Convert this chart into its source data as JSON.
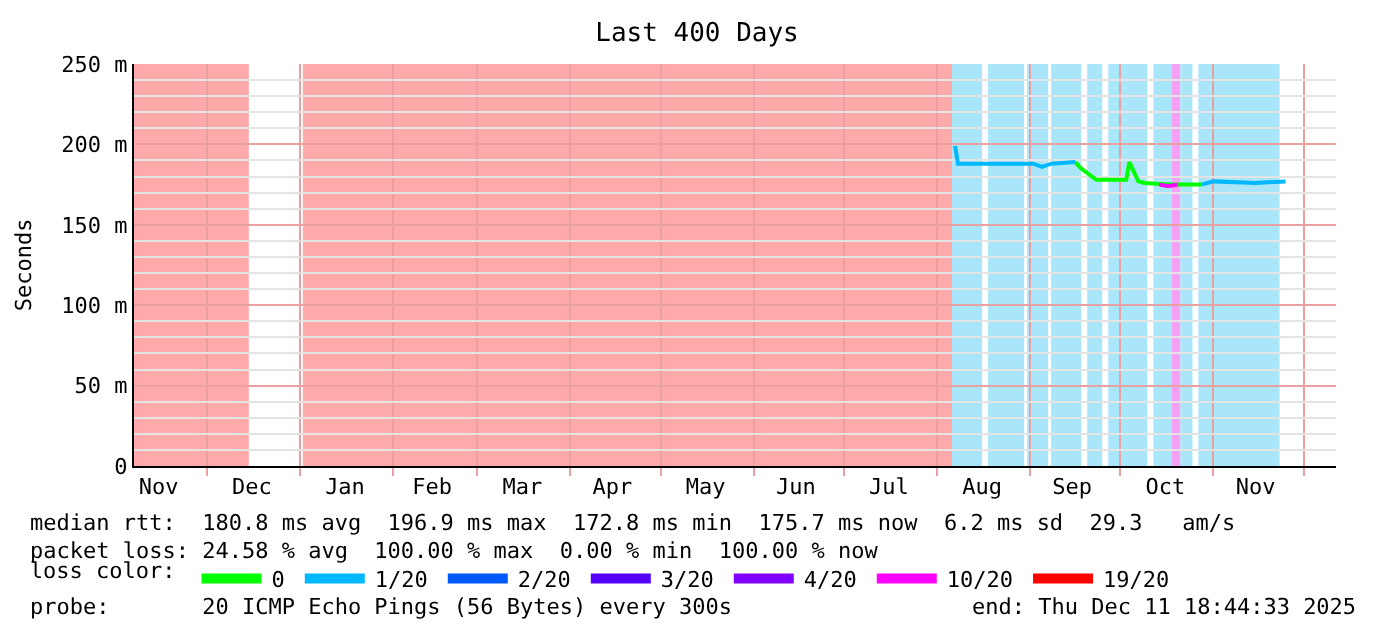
{
  "chart_data": {
    "type": "line",
    "title": "Last 400 Days",
    "ylabel": "Seconds",
    "xlim": [
      "2024-11-06T18:44",
      "2025-12-11T18:44"
    ],
    "xticks": [
      {
        "value": "2024-11-15",
        "label": "Nov"
      },
      {
        "value": "2024-12-16",
        "label": "Dec"
      },
      {
        "value": "2025-01-16",
        "label": "Jan"
      },
      {
        "value": "2025-02-14",
        "label": "Feb"
      },
      {
        "value": "2025-03-16",
        "label": "Mar"
      },
      {
        "value": "2025-04-15",
        "label": "Apr"
      },
      {
        "value": "2025-05-16",
        "label": "May"
      },
      {
        "value": "2025-06-15",
        "label": "Jun"
      },
      {
        "value": "2025-07-16",
        "label": "Jul"
      },
      {
        "value": "2025-08-16",
        "label": "Aug"
      },
      {
        "value": "2025-09-15",
        "label": "Sep"
      },
      {
        "value": "2025-10-16",
        "label": "Oct"
      },
      {
        "value": "2025-11-15",
        "label": "Nov"
      },
      {
        "value": "2024-12-01",
        "label": null
      },
      {
        "value": "2025-01-01",
        "label": null
      },
      {
        "value": "2025-02-01",
        "label": null
      },
      {
        "value": "2025-03-01",
        "label": null
      },
      {
        "value": "2025-04-01",
        "label": null
      },
      {
        "value": "2025-05-01",
        "label": null
      },
      {
        "value": "2025-06-01",
        "label": null
      },
      {
        "value": "2025-07-01",
        "label": null
      },
      {
        "value": "2025-08-01",
        "label": null
      },
      {
        "value": "2025-09-01",
        "label": null
      },
      {
        "value": "2025-10-01",
        "label": null
      },
      {
        "value": "2025-11-01",
        "label": null
      },
      {
        "value": "2025-12-01",
        "label": null
      }
    ],
    "ylim": [
      0,
      250
    ],
    "yticks": [
      0,
      {
        "value": 50,
        "label": "50 m"
      },
      {
        "value": 100,
        "label": "100 m"
      },
      {
        "value": 150,
        "label": "150 m"
      },
      {
        "value": 200,
        "label": "200 m"
      },
      {
        "value": 250,
        "label": "250 m"
      },
      {
        "value": 10,
        "label": null
      },
      {
        "value": 20,
        "label": null
      },
      {
        "value": 30,
        "label": null
      },
      {
        "value": 40,
        "label": null
      },
      {
        "value": 60,
        "label": null
      },
      {
        "value": 70,
        "label": null
      },
      {
        "value": 80,
        "label": null
      },
      {
        "value": 90,
        "label": null
      },
      {
        "value": 110,
        "label": null
      },
      {
        "value": 120,
        "label": null
      },
      {
        "value": 130,
        "label": null
      },
      {
        "value": 140,
        "label": null
      },
      {
        "value": 160,
        "label": null
      },
      {
        "value": 170,
        "label": null
      },
      {
        "value": 180,
        "label": null
      },
      {
        "value": 190,
        "label": null
      },
      {
        "value": 210,
        "label": null
      },
      {
        "value": 220,
        "label": null
      },
      {
        "value": 230,
        "label": null
      },
      {
        "value": 240,
        "label": null
      }
    ],
    "grid": true,
    "legend": "bottom",
    "legend_title": "loss color:",
    "series": [
      {
        "name": "0",
        "color": "#00ff00",
        "x": [
          "2025-09-16",
          "2025-09-18",
          "2025-09-23",
          "2025-10-03",
          "2025-10-04",
          "2025-10-07",
          "2025-10-09",
          "2025-10-17",
          "2025-10-28"
        ],
        "values": [
          189,
          185,
          178,
          178,
          189,
          177,
          176,
          175,
          175
        ]
      },
      {
        "name": "1/20",
        "color": "#00b8ff",
        "x": [
          "2025-08-07",
          "2025-08-08",
          "2025-08-18",
          "2025-09-02",
          "2025-09-05",
          "2025-09-08",
          "2025-09-16",
          null,
          "2025-10-28",
          "2025-11-01",
          "2025-11-15",
          "2025-11-25"
        ],
        "values": [
          199,
          188,
          188,
          188,
          186,
          188,
          189,
          null,
          175,
          177,
          176,
          177
        ]
      },
      {
        "name": "2/20",
        "color": "#0059ff"
      },
      {
        "name": "3/20",
        "color": "#5500ff"
      },
      {
        "name": "4/20",
        "color": "#7e00ff"
      },
      {
        "name": "10/20",
        "color": "#ff00ff",
        "x": [
          "2025-10-14",
          "2025-10-17",
          "2025-10-20"
        ],
        "values": [
          175,
          174,
          175
        ]
      },
      {
        "name": "19/20",
        "color": "#ff0000"
      }
    ],
    "bands": [
      {
        "axis": "x",
        "from": "2024-11-06T18:44",
        "to": "2024-12-15",
        "color": "#ffaaaa"
      },
      {
        "axis": "x",
        "from": "2025-01-02",
        "to": "2025-08-06",
        "color": "#ffaaaa"
      },
      {
        "axis": "x",
        "from": "2025-08-06",
        "to": "2025-08-16",
        "color": "#aae6fa"
      },
      {
        "axis": "x",
        "from": "2025-08-18",
        "to": "2025-08-30",
        "color": "#aae6fa"
      },
      {
        "axis": "x",
        "from": "2025-08-31",
        "to": "2025-09-07",
        "color": "#aae6fa"
      },
      {
        "axis": "x",
        "from": "2025-09-08",
        "to": "2025-09-18",
        "color": "#aae6fa"
      },
      {
        "axis": "x",
        "from": "2025-09-20",
        "to": "2025-09-25",
        "color": "#aae6fa"
      },
      {
        "axis": "x",
        "from": "2025-09-27",
        "to": "2025-10-10",
        "color": "#aae6fa"
      },
      {
        "axis": "x",
        "from": "2025-10-12",
        "to": "2025-10-18",
        "color": "#aae6fa"
      },
      {
        "axis": "x",
        "from": "2025-10-18",
        "to": "2025-10-21",
        "color": "#f5a0f5"
      },
      {
        "axis": "x",
        "from": "2025-10-21",
        "to": "2025-10-25",
        "color": "#aae6fa"
      },
      {
        "axis": "x",
        "from": "2025-10-27",
        "to": "2025-11-23",
        "color": "#aae6fa"
      }
    ],
    "annotations": [
      "median rtt:  180.8 ms avg  196.9 ms max  172.8 ms min  175.7 ms now  6.2 ms sd  29.3   am/s",
      "packet loss: 24.58 % avg  100.00 % max  0.00 % min  100.00 % now",
      "probe:       20 ICMP Echo Pings (56 Bytes) every 300s",
      "end: Thu Dec 11 18:44:33 2025"
    ]
  }
}
